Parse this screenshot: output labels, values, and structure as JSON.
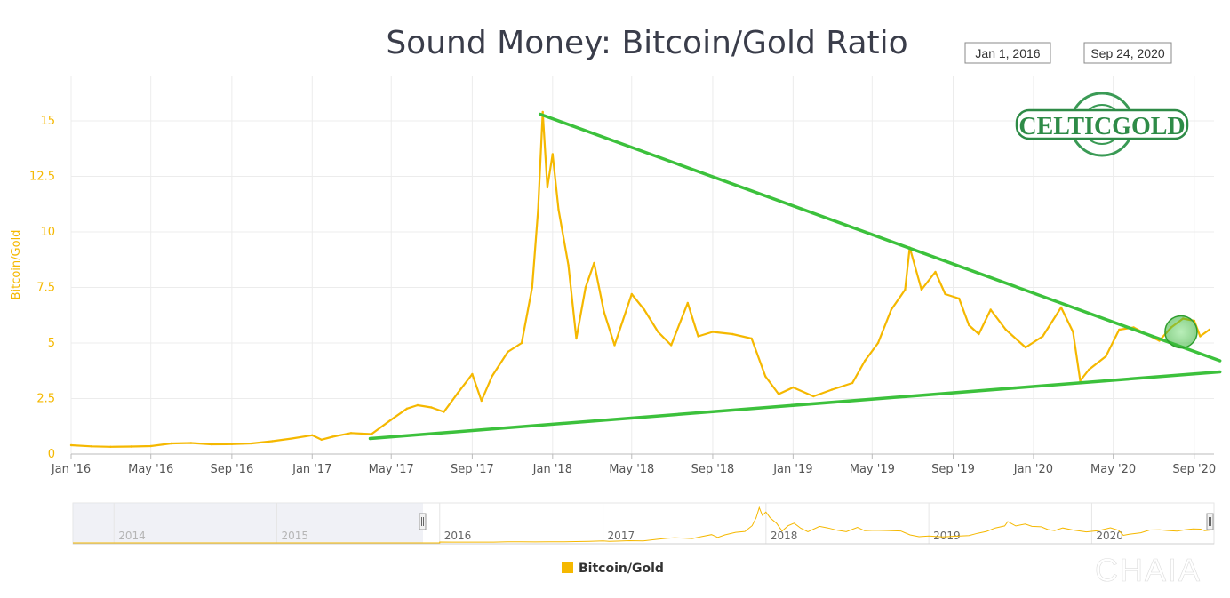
{
  "chart_data": {
    "type": "line",
    "title": "Sound Money: Bitcoin/Gold Ratio",
    "ylabel": "Bitcoin/Gold",
    "legend": {
      "label": "Bitcoin/Gold",
      "placement": "bottom-center"
    },
    "date_range": {
      "from": "Jan 1, 2016",
      "to": "Sep 24, 2020"
    },
    "ylim": [
      0,
      17
    ],
    "grid": true,
    "y_ticks": [
      "0",
      "2.5",
      "5",
      "7.5",
      "10",
      "12.5",
      "15"
    ],
    "x_ticks": [
      "Jan '16",
      "May '16",
      "Sep '16",
      "Jan '17",
      "May '17",
      "Sep '17",
      "Jan '18",
      "May '18",
      "Sep '18",
      "Jan '19",
      "May '19",
      "Sep '19",
      "Jan '20",
      "May '20",
      "Sep '20"
    ],
    "navigator_years": [
      "2014",
      "2015",
      "2016",
      "2017",
      "2018",
      "2019",
      "2020"
    ],
    "series": [
      {
        "name": "Bitcoin/Gold",
        "color": "#f5b800",
        "points": [
          [
            "2016-01-01",
            0.4
          ],
          [
            "2016-02-01",
            0.35
          ],
          [
            "2016-03-01",
            0.33
          ],
          [
            "2016-04-01",
            0.34
          ],
          [
            "2016-05-01",
            0.36
          ],
          [
            "2016-06-01",
            0.48
          ],
          [
            "2016-07-01",
            0.5
          ],
          [
            "2016-08-01",
            0.44
          ],
          [
            "2016-09-01",
            0.45
          ],
          [
            "2016-10-01",
            0.48
          ],
          [
            "2016-11-01",
            0.58
          ],
          [
            "2016-12-01",
            0.7
          ],
          [
            "2017-01-01",
            0.85
          ],
          [
            "2017-01-15",
            0.65
          ],
          [
            "2017-02-01",
            0.78
          ],
          [
            "2017-03-01",
            0.95
          ],
          [
            "2017-04-01",
            0.9
          ],
          [
            "2017-05-01",
            1.55
          ],
          [
            "2017-05-25",
            2.05
          ],
          [
            "2017-06-10",
            2.2
          ],
          [
            "2017-07-01",
            2.1
          ],
          [
            "2017-07-20",
            1.9
          ],
          [
            "2017-08-10",
            2.75
          ],
          [
            "2017-09-01",
            3.6
          ],
          [
            "2017-09-15",
            2.4
          ],
          [
            "2017-10-01",
            3.5
          ],
          [
            "2017-10-25",
            4.6
          ],
          [
            "2017-11-15",
            5.0
          ],
          [
            "2017-12-01",
            7.5
          ],
          [
            "2017-12-10",
            11.0
          ],
          [
            "2017-12-17",
            15.4
          ],
          [
            "2017-12-24",
            12.0
          ],
          [
            "2018-01-01",
            13.5
          ],
          [
            "2018-01-10",
            11.0
          ],
          [
            "2018-01-25",
            8.5
          ],
          [
            "2018-02-06",
            5.2
          ],
          [
            "2018-02-20",
            7.5
          ],
          [
            "2018-03-05",
            8.6
          ],
          [
            "2018-03-20",
            6.4
          ],
          [
            "2018-04-05",
            4.9
          ],
          [
            "2018-05-01",
            7.2
          ],
          [
            "2018-05-20",
            6.5
          ],
          [
            "2018-06-10",
            5.5
          ],
          [
            "2018-06-30",
            4.9
          ],
          [
            "2018-07-25",
            6.8
          ],
          [
            "2018-08-10",
            5.3
          ],
          [
            "2018-09-01",
            5.5
          ],
          [
            "2018-10-01",
            5.4
          ],
          [
            "2018-10-30",
            5.2
          ],
          [
            "2018-11-20",
            3.5
          ],
          [
            "2018-12-10",
            2.7
          ],
          [
            "2019-01-01",
            3.0
          ],
          [
            "2019-02-01",
            2.6
          ],
          [
            "2019-03-01",
            2.9
          ],
          [
            "2019-04-01",
            3.2
          ],
          [
            "2019-04-20",
            4.2
          ],
          [
            "2019-05-10",
            5.0
          ],
          [
            "2019-05-30",
            6.5
          ],
          [
            "2019-06-20",
            7.4
          ],
          [
            "2019-06-27",
            9.3
          ],
          [
            "2019-07-15",
            7.4
          ],
          [
            "2019-08-05",
            8.2
          ],
          [
            "2019-08-20",
            7.2
          ],
          [
            "2019-09-10",
            7.0
          ],
          [
            "2019-09-25",
            5.8
          ],
          [
            "2019-10-10",
            5.4
          ],
          [
            "2019-10-28",
            6.5
          ],
          [
            "2019-11-20",
            5.6
          ],
          [
            "2019-12-20",
            4.8
          ],
          [
            "2020-01-15",
            5.3
          ],
          [
            "2020-02-12",
            6.6
          ],
          [
            "2020-03-01",
            5.5
          ],
          [
            "2020-03-12",
            3.3
          ],
          [
            "2020-03-25",
            3.8
          ],
          [
            "2020-04-20",
            4.4
          ],
          [
            "2020-05-10",
            5.6
          ],
          [
            "2020-06-01",
            5.7
          ],
          [
            "2020-06-20",
            5.4
          ],
          [
            "2020-07-10",
            5.1
          ],
          [
            "2020-07-28",
            5.7
          ],
          [
            "2020-08-15",
            6.1
          ],
          [
            "2020-09-01",
            6.0
          ],
          [
            "2020-09-10",
            5.3
          ],
          [
            "2020-09-24",
            5.6
          ]
        ]
      }
    ],
    "trendlines": [
      {
        "name": "upper-resistance",
        "color": "#3cc13c",
        "from": [
          "2017-12-13",
          15.3
        ],
        "to": [
          "2020-10-10",
          4.2
        ]
      },
      {
        "name": "lower-support",
        "color": "#3cc13c",
        "from": [
          "2017-03-30",
          0.7
        ],
        "to": [
          "2020-10-10",
          3.7
        ]
      }
    ],
    "highlight": {
      "date": "2020-08-12",
      "value": 5.5,
      "color": "#3cc13c"
    }
  },
  "logo": {
    "text": "CELTICGOLD",
    "color": "#2e8b47"
  },
  "watermark": {
    "text": "CHAIA"
  }
}
